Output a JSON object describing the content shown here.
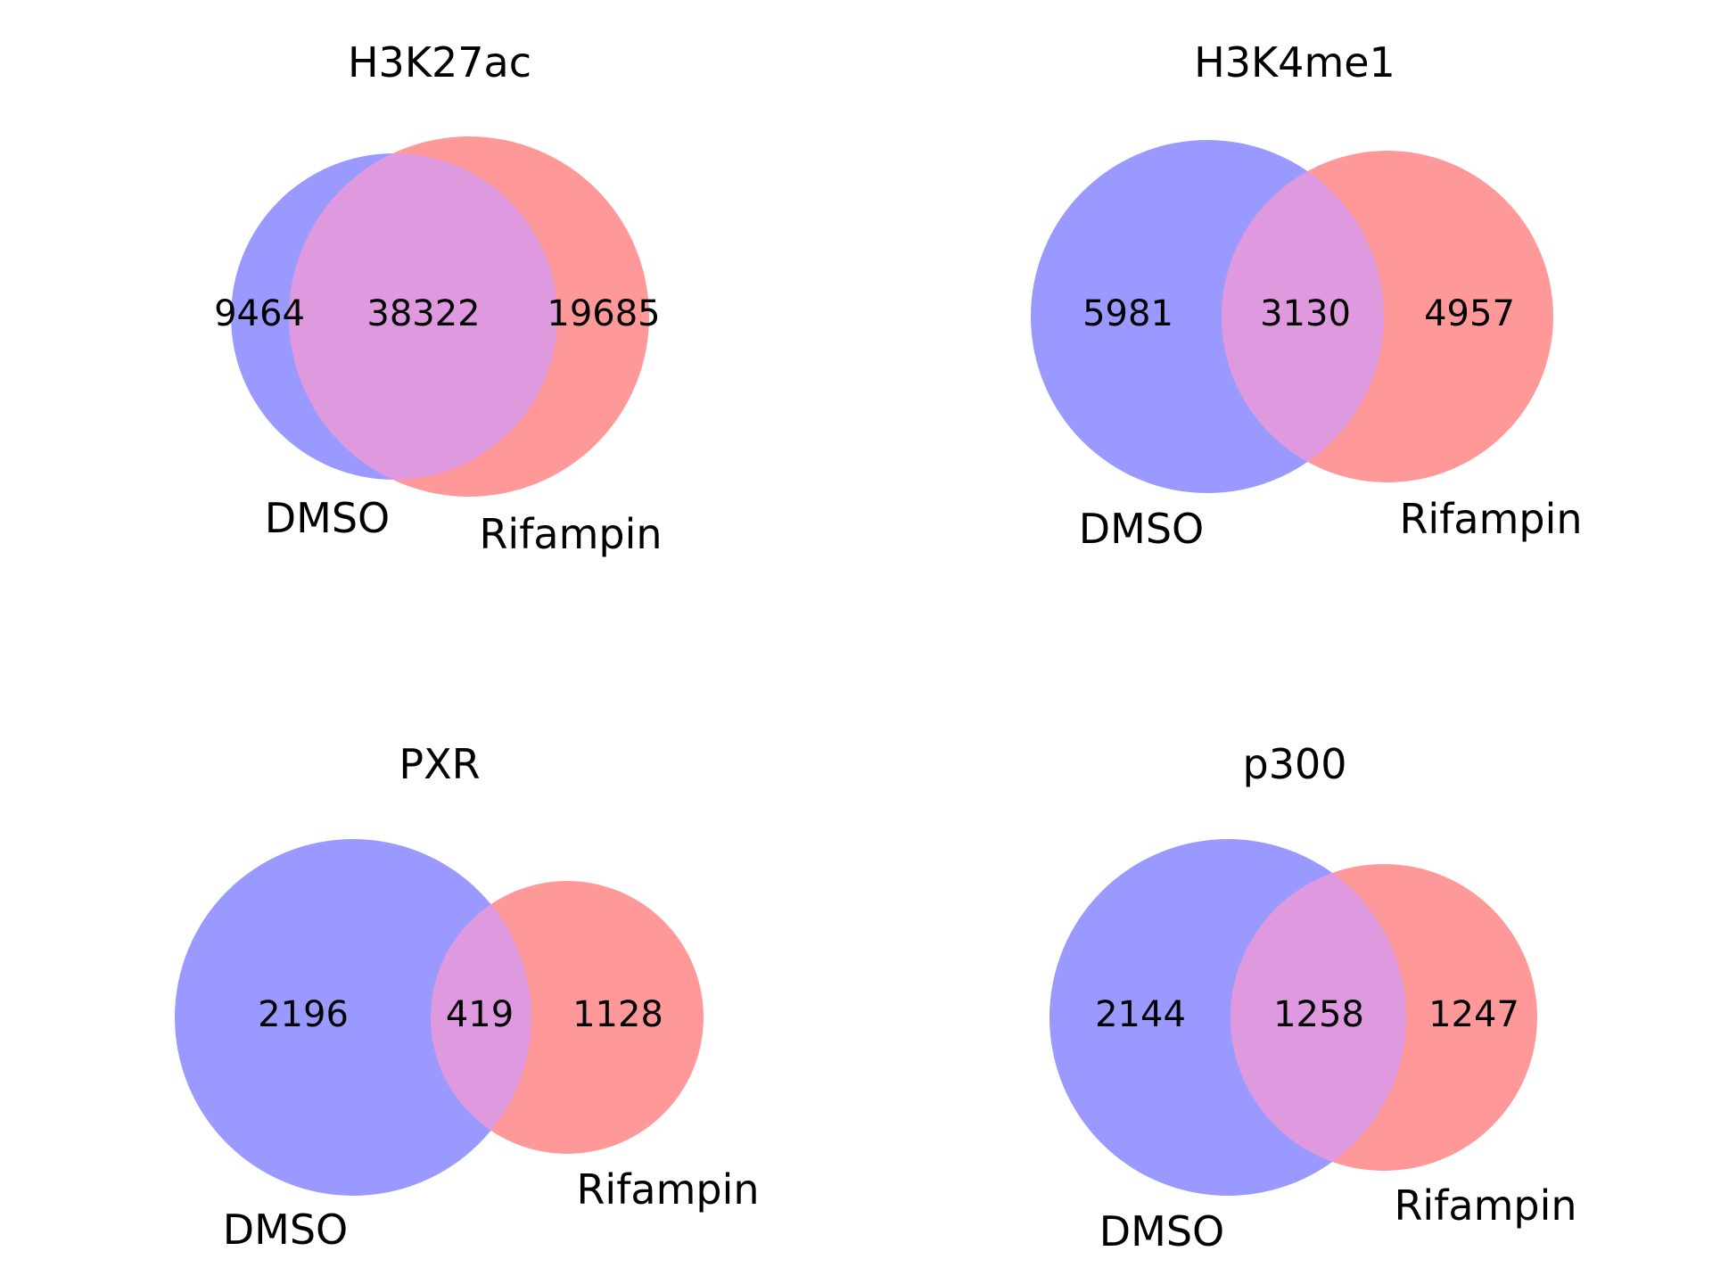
{
  "colors": {
    "set_a": "#9999ff",
    "set_b": "#ff9999",
    "overlap": "#df99df"
  },
  "panels": [
    {
      "title": "H3K27ac",
      "set_a_label": "DMSO",
      "set_b_label": "Rifampin",
      "only_a": "9464",
      "both": "38322",
      "only_b": "19685"
    },
    {
      "title": "H3K4me1",
      "set_a_label": "DMSO",
      "set_b_label": "Rifampin",
      "only_a": "5981",
      "both": "3130",
      "only_b": "4957"
    },
    {
      "title": "PXR",
      "set_a_label": "DMSO",
      "set_b_label": "Rifampin",
      "only_a": "2196",
      "both": "419",
      "only_b": "1128"
    },
    {
      "title": "p300",
      "set_a_label": "DMSO",
      "set_b_label": "Rifampin",
      "only_a": "2144",
      "both": "1258",
      "only_b": "1247"
    }
  ]
}
